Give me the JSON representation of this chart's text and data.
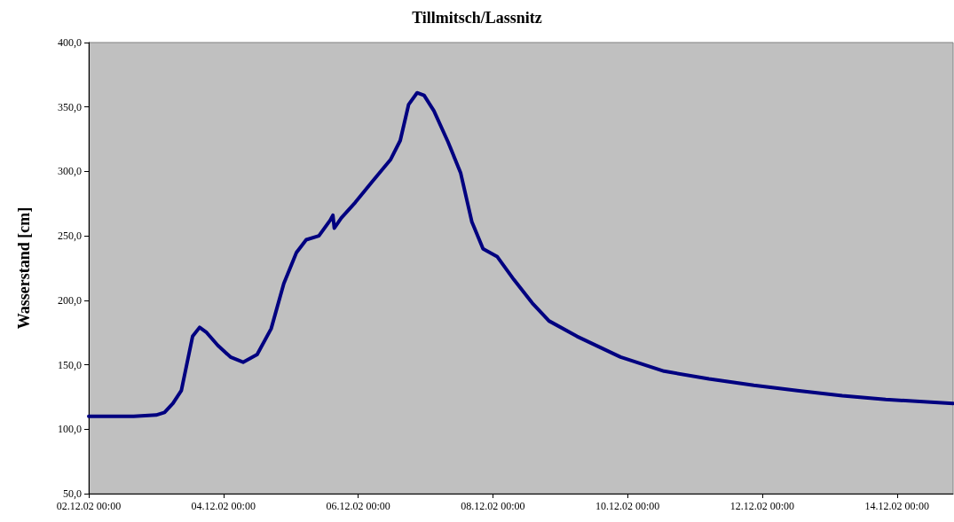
{
  "chart_data": {
    "type": "line",
    "title": "Tillmitsch/Lassnitz",
    "ylabel": "Wasserstand [cm]",
    "x": [
      "--12-02T00:00",
      "--12-02T16:00",
      "--12-03T00:00",
      "--12-03T03:00",
      "--12-03T06:00",
      "--12-03T09:00",
      "--12-03T11:00",
      "--12-03T13:00",
      "--12-03T15:30",
      "--12-03T18:00",
      "--12-03T22:00",
      "--12-04T02:30",
      "--12-04T07:00",
      "--12-04T12:00",
      "--12-04T17:00",
      "--12-04T21:30",
      "--12-05T02:00",
      "--12-05T05:30",
      "--12-05T10:00",
      "--12-05T14:00",
      "--12-05T15:00",
      "--12-05T15:30",
      "--12-05T18:00",
      "--12-05T23:00",
      "--12-06T05:00",
      "--12-06T11:30",
      "--12-06T15:00",
      "--12-06T18:00",
      "--12-06T21:00",
      "--12-06T23:30",
      "--12-07T03:00",
      "--12-07T08:00",
      "--12-07T12:30",
      "--12-07T16:30",
      "--12-07T20:30",
      "--12-08T01:30",
      "--12-08T07:30",
      "--12-08T14:00",
      "--12-08T20:00",
      "--12-09T06:00",
      "--12-09T21:30",
      "--12-10T13:00",
      "--12-11T05:00",
      "--12-11T21:00",
      "--12-12T12:30",
      "--12-13T04:30",
      "--12-13T20:00",
      "--12-14T12:00",
      "--12-14T20:00"
    ],
    "series": [
      {
        "color": "#000080",
        "values": [
          110,
          110,
          111,
          113,
          120,
          130,
          151,
          172,
          179,
          175,
          165,
          156,
          152,
          158,
          178,
          213,
          237,
          247,
          250,
          262,
          266,
          256,
          264,
          276,
          292,
          309,
          324,
          352,
          361,
          359,
          347,
          323,
          299,
          261,
          240,
          234,
          216,
          198,
          184,
          172,
          156,
          145,
          139,
          134,
          130,
          126,
          123,
          121,
          120
        ]
      }
    ],
    "xlim": [
      "--12-02T00:00",
      "--12-14T20:00"
    ],
    "xticks": [
      {
        "value": "--12-02T00:00",
        "label": "02.12.02 00:00"
      },
      {
        "value": "--12-04T00:00",
        "label": "04.12.02 00:00"
      },
      {
        "value": "--12-06T00:00",
        "label": "06.12.02 00:00"
      },
      {
        "value": "--12-08T00:00",
        "label": "08.12.02 00:00"
      },
      {
        "value": "--12-10T00:00",
        "label": "10.12.02 00:00"
      },
      {
        "value": "--12-12T00:00",
        "label": "12.12.02 00:00"
      },
      {
        "value": "--12-14T00:00",
        "label": "14.12.02 00:00"
      }
    ],
    "ylim": [
      50,
      400
    ],
    "yticks": [
      {
        "value": 50,
        "label": "50,0"
      },
      {
        "value": 100,
        "label": "100,0"
      },
      {
        "value": 150,
        "label": "150,0"
      },
      {
        "value": 200,
        "label": "200,0"
      },
      {
        "value": 250,
        "label": "250,0"
      },
      {
        "value": 300,
        "label": "300,0"
      },
      {
        "value": 350,
        "label": "350,0"
      },
      {
        "value": 400,
        "label": "400,0"
      }
    ],
    "grid": false,
    "marker": "none",
    "line_style": "solid"
  }
}
